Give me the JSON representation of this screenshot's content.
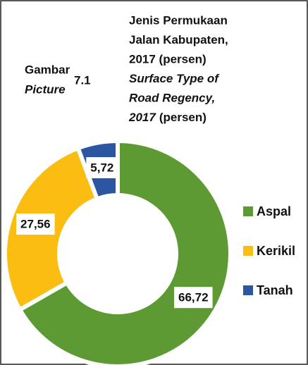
{
  "chart_data": {
    "type": "donut",
    "figure_label": "Gambar",
    "figure_label_en": "Picture",
    "figure_number": "7.1",
    "title": [
      "Jenis Permukaan",
      "Jalan Kabupaten,",
      "2017 (persen)"
    ],
    "subtitle": [
      "Surface Type of",
      "Road Regency,",
      "2017"
    ],
    "subtitle_suffix": "(persen)",
    "categories": [
      "Aspal",
      "Kerikil",
      "Tanah"
    ],
    "values": [
      66.72,
      27.56,
      5.72
    ],
    "value_labels": [
      "66,72",
      "27,56",
      "5,72"
    ],
    "colors": [
      "#5e9a34",
      "#fbbd12",
      "#2c55a2"
    ],
    "legend": "right"
  }
}
